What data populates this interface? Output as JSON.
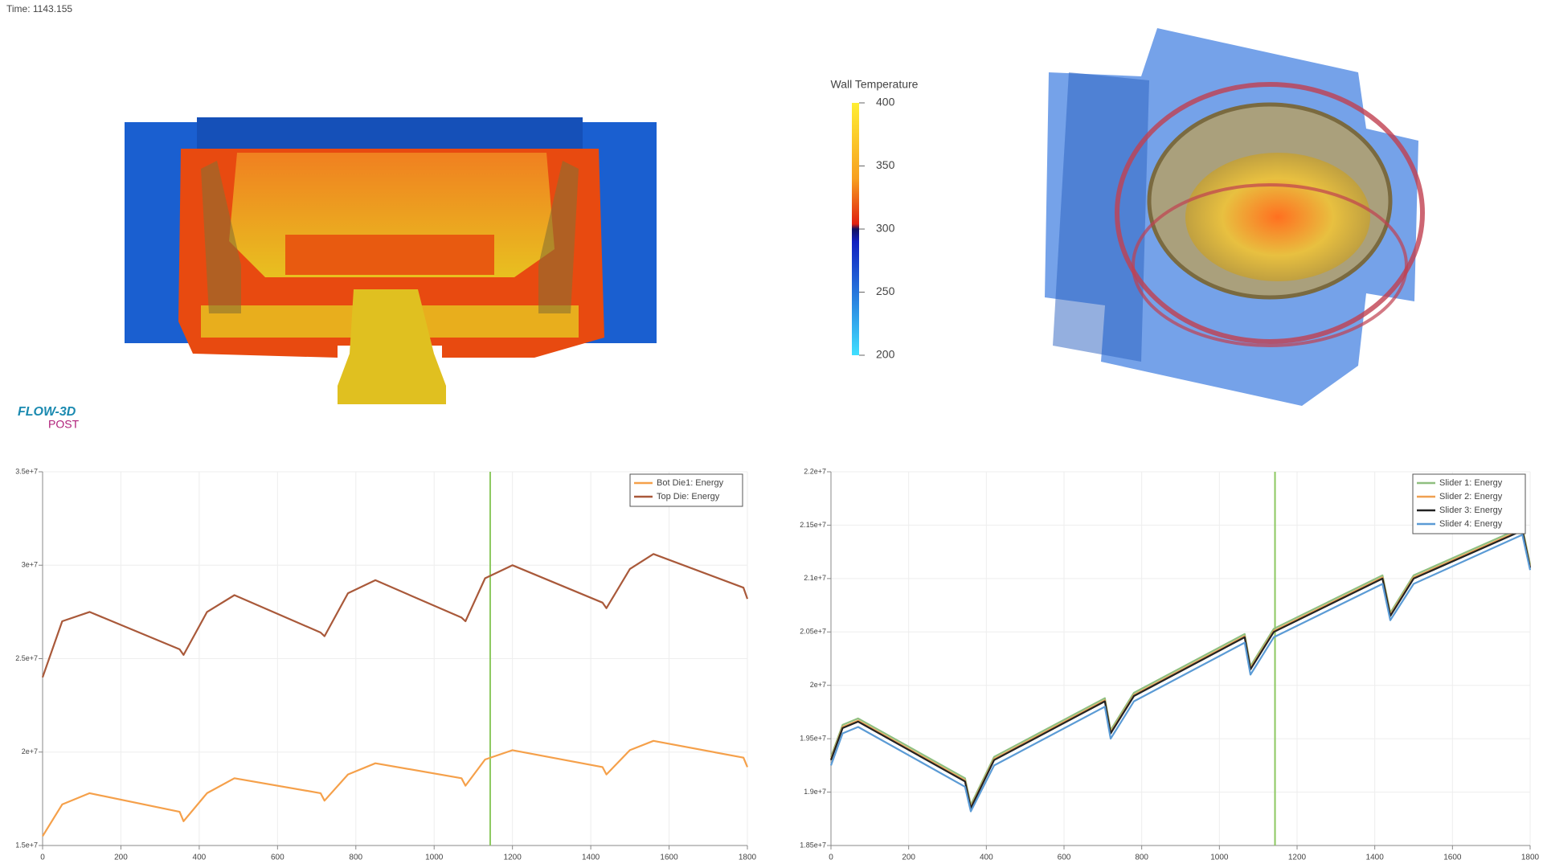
{
  "time_label": "Time: 1143.155",
  "logo": {
    "name": "FLOW-3D",
    "sub": "POST"
  },
  "colorbar": {
    "title": "Wall Temperature",
    "range": [
      200,
      400
    ],
    "ticks": [
      400,
      350,
      300,
      250,
      200
    ]
  },
  "chart_data": [
    {
      "type": "line",
      "x": [
        0,
        50,
        120,
        350,
        360,
        420,
        490,
        710,
        720,
        780,
        850,
        1070,
        1080,
        1130,
        1200,
        1430,
        1440,
        1500,
        1560,
        1790,
        1800
      ],
      "series": [
        {
          "name": "Bot Die1: Energy",
          "color": "#f5a04a",
          "values": [
            15500000,
            17200000,
            17800000,
            16800000,
            16300000,
            17800000,
            18600000,
            17800000,
            17400000,
            18800000,
            19400000,
            18600000,
            18200000,
            19600000,
            20100000,
            19200000,
            18800000,
            20100000,
            20600000,
            19700000,
            19200000
          ]
        },
        {
          "name": "Top Die: Energy",
          "color": "#a9593a",
          "values": [
            24000000,
            27000000,
            27500000,
            25500000,
            25200000,
            27500000,
            28400000,
            26400000,
            26200000,
            28500000,
            29200000,
            27200000,
            27000000,
            29300000,
            30000000,
            28000000,
            27700000,
            29800000,
            30600000,
            28800000,
            28200000
          ]
        }
      ],
      "xlim": [
        0,
        1800
      ],
      "xticks": [
        0,
        200,
        400,
        600,
        800,
        1000,
        1200,
        1400,
        1600,
        1800
      ],
      "ylim": [
        15000000,
        35000000
      ],
      "yticks": [
        {
          "value": 15000000,
          "label": "1.5e+7"
        },
        {
          "value": 20000000,
          "label": "2e+7"
        },
        {
          "value": 25000000,
          "label": "2.5e+7"
        },
        {
          "value": 30000000,
          "label": "3e+7"
        },
        {
          "value": 35000000,
          "label": "3.5e+7"
        }
      ],
      "cursor_x": 1143.155,
      "grid": true,
      "legend": "top-right"
    },
    {
      "type": "line",
      "x": [
        0,
        30,
        70,
        345,
        360,
        420,
        705,
        720,
        780,
        1065,
        1080,
        1140,
        1420,
        1440,
        1500,
        1780,
        1800
      ],
      "series": [
        {
          "name": "Slider 1: Energy",
          "color": "#8fbf7f",
          "values": [
            19330000,
            19630000,
            19690000,
            19130000,
            18880000,
            19330000,
            19880000,
            19580000,
            19930000,
            20480000,
            20180000,
            20530000,
            21030000,
            20680000,
            21030000,
            21480000,
            21130000
          ]
        },
        {
          "name": "Slider 2: Energy",
          "color": "#f0a050",
          "values": [
            19310000,
            19610000,
            19670000,
            19110000,
            18860000,
            19310000,
            19860000,
            19560000,
            19910000,
            20460000,
            20160000,
            20510000,
            21010000,
            20660000,
            21010000,
            21460000,
            21110000
          ]
        },
        {
          "name": "Slider 3: Energy",
          "color": "#222222",
          "values": [
            19300000,
            19600000,
            19660000,
            19100000,
            18850000,
            19300000,
            19850000,
            19550000,
            19900000,
            20450000,
            20150000,
            20500000,
            21000000,
            20650000,
            21000000,
            21450000,
            21100000
          ]
        },
        {
          "name": "Slider 4: Energy",
          "color": "#5b9bd5",
          "values": [
            19250000,
            19550000,
            19610000,
            19050000,
            18820000,
            19250000,
            19800000,
            19500000,
            19850000,
            20400000,
            20100000,
            20450000,
            20950000,
            20610000,
            20950000,
            21410000,
            21080000
          ]
        }
      ],
      "xlim": [
        0,
        1800
      ],
      "xticks": [
        0,
        200,
        400,
        600,
        800,
        1000,
        1200,
        1400,
        1600,
        1800
      ],
      "ylim": [
        18500000,
        22000000
      ],
      "yticks": [
        {
          "value": 18500000,
          "label": "1.85e+7"
        },
        {
          "value": 19000000,
          "label": "1.9e+7"
        },
        {
          "value": 19500000,
          "label": "1.95e+7"
        },
        {
          "value": 20000000,
          "label": "2e+7"
        },
        {
          "value": 20500000,
          "label": "2.05e+7"
        },
        {
          "value": 21000000,
          "label": "2.1e+7"
        },
        {
          "value": 21500000,
          "label": "2.15e+7"
        },
        {
          "value": 22000000,
          "label": "2.2e+7"
        }
      ],
      "cursor_x": 1143.155,
      "grid": true,
      "legend": "top-right"
    }
  ]
}
